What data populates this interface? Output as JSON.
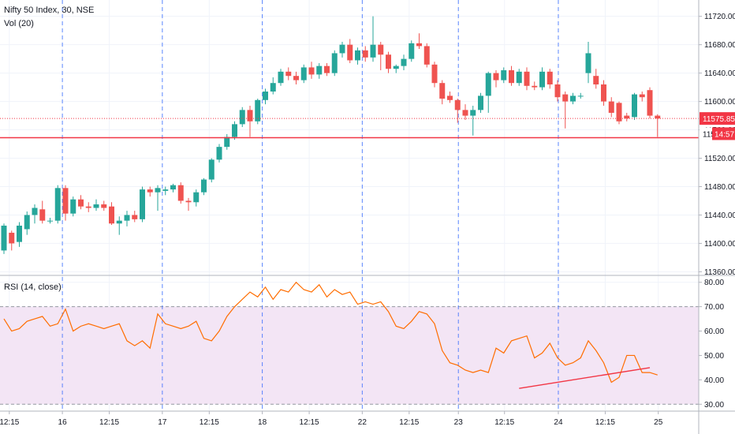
{
  "chart_data": {
    "type": "candlestick",
    "title": "Nifty 50 Index, 30, NSE",
    "volume_label": "Vol (20)",
    "rsi_label": "RSI (14, close)",
    "price_ticks": [
      11720,
      11680,
      11640,
      11600,
      11560,
      11520,
      11480,
      11440,
      11400,
      11360
    ],
    "price_tick_labels": [
      "11720.00",
      "11680.00",
      "11640.00",
      "11600.00",
      "11560.00",
      "11520.00",
      "11480.00",
      "11440.00",
      "11400.00",
      "11360.00"
    ],
    "price_range": [
      11356,
      11743
    ],
    "rsi_ticks": [
      80,
      70,
      60,
      50,
      40,
      30
    ],
    "rsi_tick_labels": [
      "80.00",
      "70.00",
      "60.00",
      "50.00",
      "40.00",
      "30.00"
    ],
    "rsi_range": [
      27.5,
      82.5
    ],
    "rsi_band": [
      30,
      70
    ],
    "time_labels": [
      "12:15",
      "16",
      "12:15",
      "17",
      "12:15",
      "18",
      "12:15",
      "22",
      "12:15",
      "23",
      "12:15",
      "24",
      "12:15",
      "25"
    ],
    "day_separators": [
      "16",
      "17",
      "18",
      "22",
      "23",
      "24"
    ],
    "current_price_label": "11575.85",
    "countdown_label": "14:57",
    "support_level": 11549,
    "last_price": 11576,
    "colors": {
      "up": "#26a69a",
      "down": "#ef5350",
      "rsi": "#ff6d00",
      "band": "#f3e5f5",
      "line": "#f23645"
    },
    "candles": [
      [
        11390,
        11425,
        11385,
        11428
      ],
      [
        11415,
        11400,
        11390,
        11418
      ],
      [
        11402,
        11425,
        11395,
        11430
      ],
      [
        11420,
        11440,
        11412,
        11445
      ],
      [
        11440,
        11450,
        11428,
        11455
      ],
      [
        11448,
        11432,
        11428,
        11460
      ],
      [
        11432,
        11432,
        11428,
        11436
      ],
      [
        11432,
        11478,
        11428,
        11482
      ],
      [
        11478,
        11442,
        11432,
        11482
      ],
      [
        11442,
        11462,
        11438,
        11466
      ],
      [
        11462,
        11452,
        11448,
        11468
      ],
      [
        11452,
        11450,
        11444,
        11458
      ],
      [
        11450,
        11455,
        11446,
        11462
      ],
      [
        11455,
        11450,
        11446,
        11460
      ],
      [
        11452,
        11428,
        11426,
        11458
      ],
      [
        11428,
        11432,
        11412,
        11438
      ],
      [
        11432,
        11440,
        11424,
        11446
      ],
      [
        11440,
        11434,
        11430,
        11446
      ],
      [
        11434,
        11476,
        11430,
        11480
      ],
      [
        11476,
        11472,
        11466,
        11480
      ],
      [
        11472,
        11478,
        11446,
        11482
      ],
      [
        11474,
        11476,
        11468,
        11480
      ],
      [
        11476,
        11482,
        11472,
        11484
      ],
      [
        11482,
        11460,
        11456,
        11486
      ],
      [
        11460,
        11458,
        11446,
        11464
      ],
      [
        11458,
        11472,
        11452,
        11476
      ],
      [
        11472,
        11490,
        11468,
        11492
      ],
      [
        11490,
        11518,
        11486,
        11520
      ],
      [
        11518,
        11536,
        11514,
        11540
      ],
      [
        11536,
        11550,
        11532,
        11554
      ],
      [
        11550,
        11568,
        11546,
        11572
      ],
      [
        11568,
        11588,
        11564,
        11592
      ],
      [
        11588,
        11572,
        11550,
        11594
      ],
      [
        11572,
        11602,
        11568,
        11604
      ],
      [
        11602,
        11614,
        11596,
        11618
      ],
      [
        11614,
        11626,
        11610,
        11634
      ],
      [
        11626,
        11642,
        11622,
        11646
      ],
      [
        11642,
        11636,
        11630,
        11648
      ],
      [
        11636,
        11630,
        11624,
        11642
      ],
      [
        11630,
        11648,
        11626,
        11652
      ],
      [
        11648,
        11638,
        11632,
        11656
      ],
      [
        11638,
        11650,
        11632,
        11654
      ],
      [
        11650,
        11640,
        11636,
        11654
      ],
      [
        11640,
        11668,
        11636,
        11672
      ],
      [
        11668,
        11680,
        11662,
        11684
      ],
      [
        11680,
        11658,
        11654,
        11688
      ],
      [
        11658,
        11672,
        11652,
        11676
      ],
      [
        11672,
        11662,
        11656,
        11678
      ],
      [
        11662,
        11680,
        11656,
        11720
      ],
      [
        11680,
        11666,
        11644,
        11684
      ],
      [
        11666,
        11646,
        11640,
        11670
      ],
      [
        11646,
        11650,
        11640,
        11652
      ],
      [
        11650,
        11660,
        11644,
        11666
      ],
      [
        11660,
        11682,
        11656,
        11686
      ],
      [
        11682,
        11678,
        11674,
        11696
      ],
      [
        11678,
        11652,
        11648,
        11682
      ],
      [
        11652,
        11626,
        11620,
        11656
      ],
      [
        11626,
        11604,
        11596,
        11630
      ],
      [
        11608,
        11602,
        11598,
        11614
      ],
      [
        11602,
        11588,
        11570,
        11604
      ],
      [
        11588,
        11580,
        11574,
        11596
      ],
      [
        11580,
        11588,
        11552,
        11594
      ],
      [
        11588,
        11608,
        11584,
        11612
      ],
      [
        11608,
        11640,
        11584,
        11642
      ],
      [
        11640,
        11630,
        11620,
        11644
      ],
      [
        11630,
        11644,
        11626,
        11648
      ],
      [
        11644,
        11626,
        11622,
        11650
      ],
      [
        11626,
        11642,
        11622,
        11646
      ],
      [
        11642,
        11622,
        11616,
        11648
      ],
      [
        11622,
        11620,
        11616,
        11628
      ],
      [
        11620,
        11642,
        11616,
        11648
      ],
      [
        11642,
        11624,
        11618,
        11646
      ],
      [
        11624,
        11606,
        11600,
        11630
      ],
      [
        11610,
        11600,
        11562,
        11614
      ],
      [
        11600,
        11608,
        11596,
        11612
      ],
      [
        11608,
        11608,
        11604,
        11612
      ],
      [
        11640,
        11668,
        11626,
        11684
      ],
      [
        11636,
        11624,
        11618,
        11646
      ],
      [
        11624,
        11600,
        11594,
        11630
      ],
      [
        11600,
        11584,
        11578,
        11606
      ],
      [
        11598,
        11572,
        11568,
        11600
      ],
      [
        11580,
        11576,
        11572,
        11584
      ],
      [
        11578,
        11610,
        11574,
        11612
      ],
      [
        11610,
        11606,
        11600,
        11614
      ],
      [
        11616,
        11580,
        11576,
        11620
      ],
      [
        11580,
        11576,
        11550,
        11582
      ]
    ],
    "rsi": [
      65,
      60,
      61,
      64,
      65,
      66,
      62,
      63,
      69,
      60,
      62,
      63,
      62,
      61,
      62,
      63,
      56,
      54,
      56,
      53,
      67,
      63,
      62,
      61,
      62,
      64,
      57,
      56,
      60,
      66,
      70,
      73,
      76,
      74,
      78,
      73,
      77,
      76,
      80,
      77,
      76,
      79,
      74,
      77,
      75,
      76,
      71,
      72,
      71,
      72,
      68,
      62,
      61,
      64,
      68,
      67,
      63,
      52,
      47,
      46,
      44,
      43,
      44,
      43,
      53,
      51,
      56,
      57,
      58,
      49,
      51,
      55,
      49,
      46,
      47,
      49,
      56,
      52,
      47,
      39,
      41,
      50,
      50,
      43,
      43,
      42
    ],
    "rsi_trendline": {
      "from": [
        67,
        36.5
      ],
      "to": [
        84,
        45
      ]
    }
  }
}
